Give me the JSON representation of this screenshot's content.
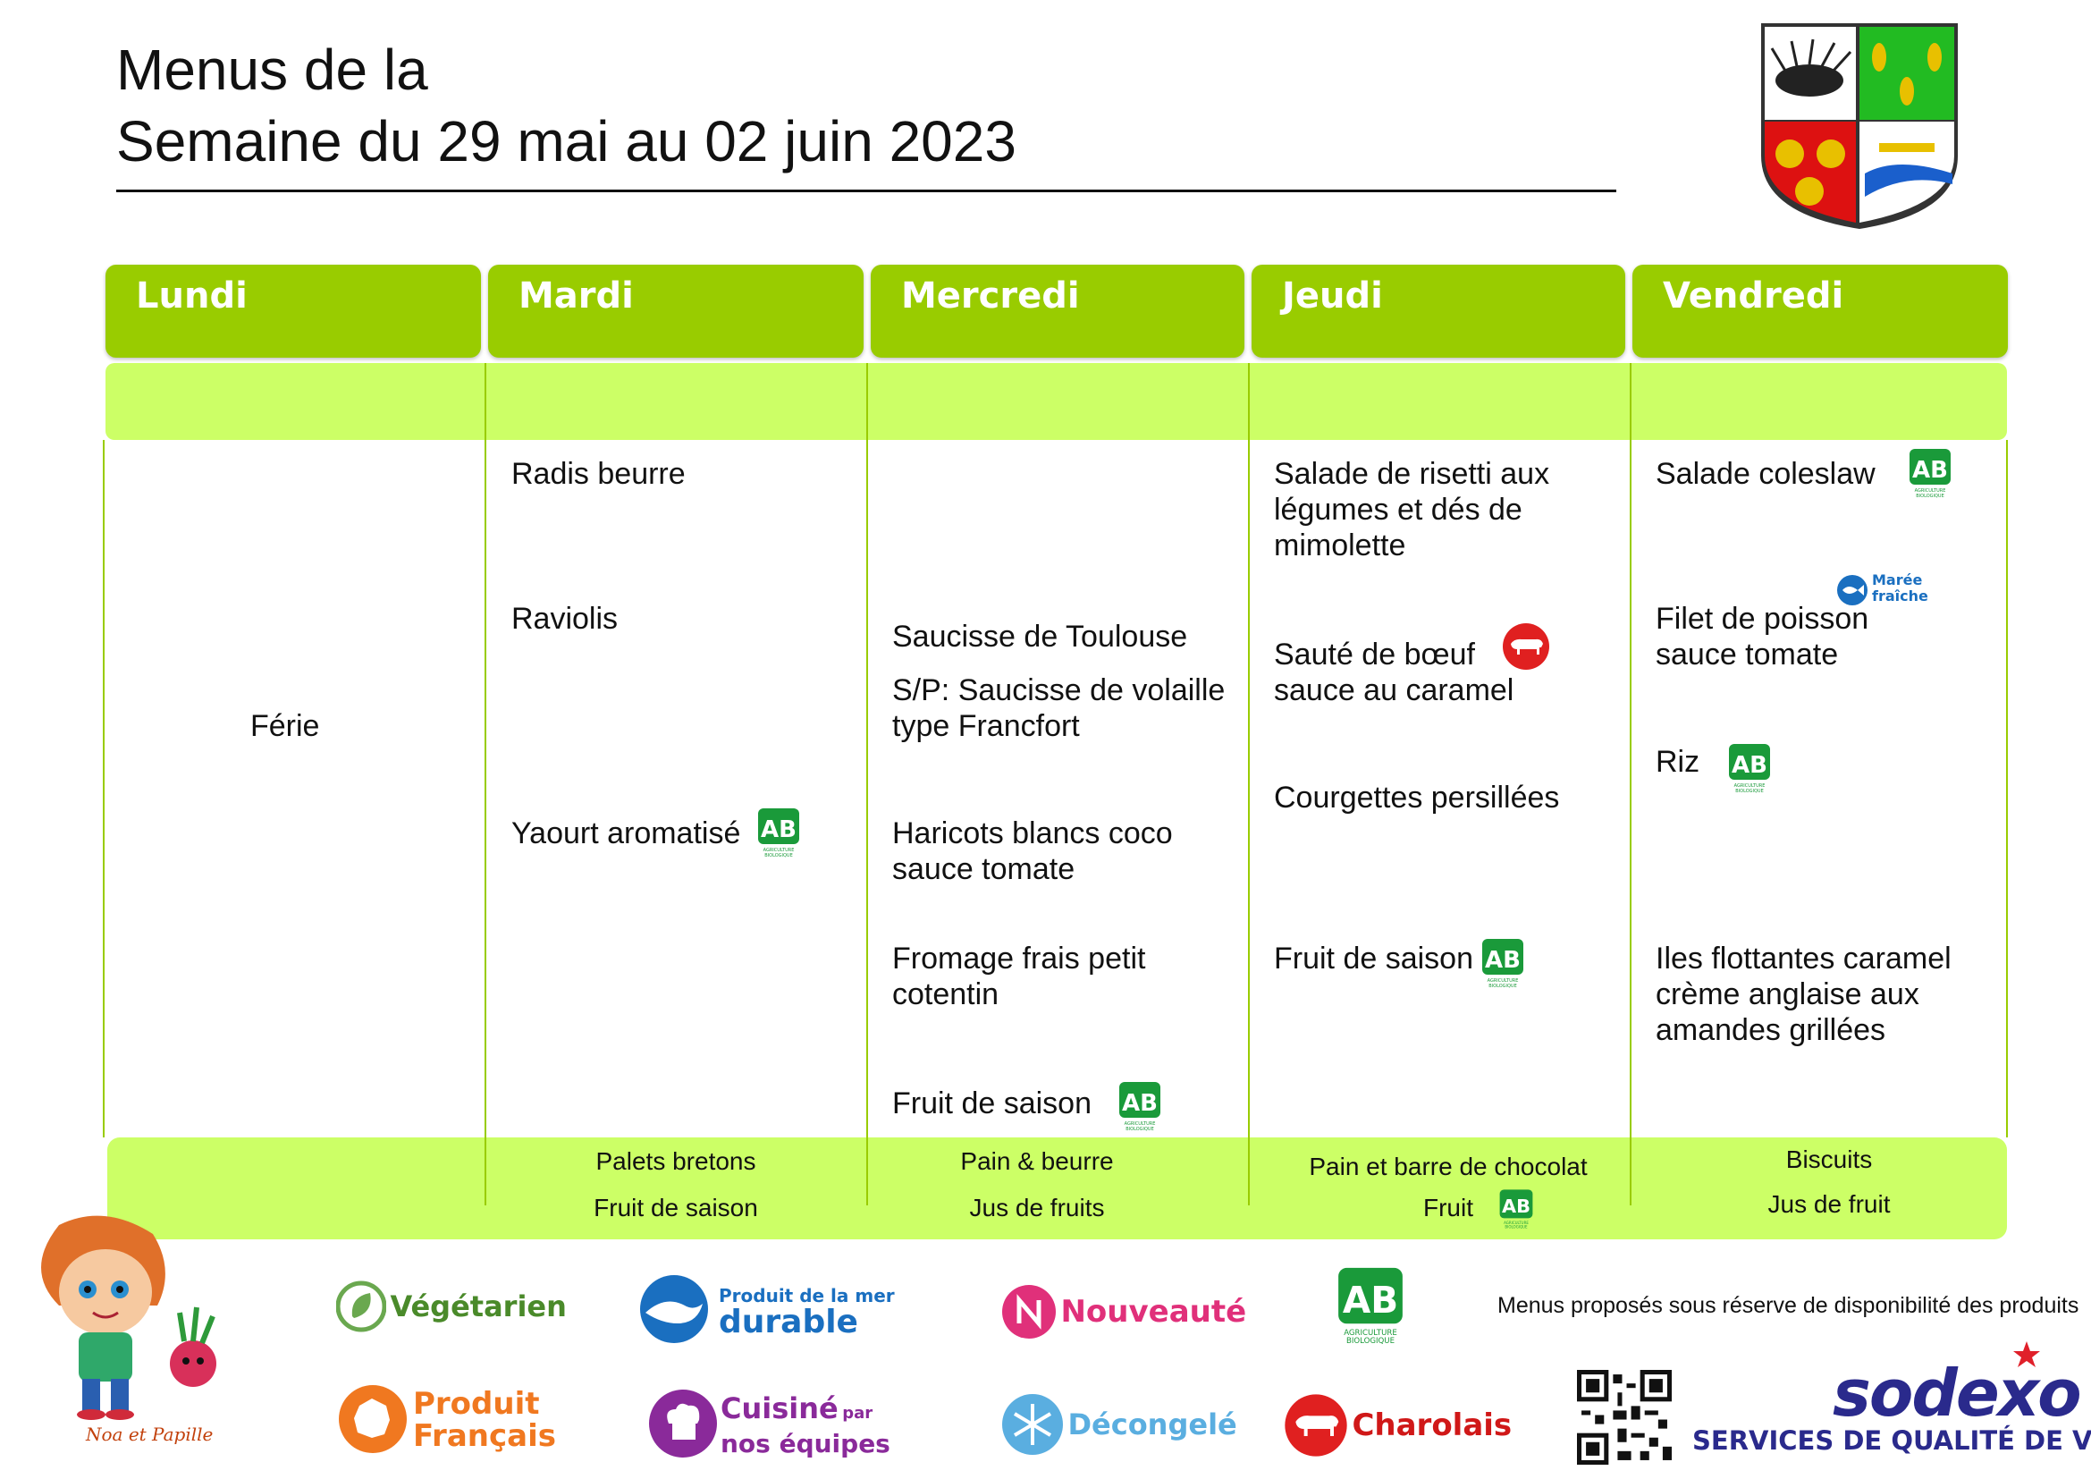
{
  "header": {
    "title_line1": "Menus de la",
    "title_line2": "Semaine du 29 mai au 02 juin 2023"
  },
  "days": [
    "Lundi",
    "Mardi",
    "Mercredi",
    "Jeudi",
    "Vendredi"
  ],
  "colors": {
    "day_header": "#99cc00",
    "band": "#ccff66",
    "divider": "#99cc00",
    "bio_green": "#1a9a3a"
  },
  "lundi": {
    "note": "Férie"
  },
  "mardi": {
    "starter": "Radis beurre",
    "main": "Raviolis",
    "dairy": "Yaourt aromatisé",
    "dairy_badge": "ab-bio-icon"
  },
  "mercredi": {
    "main": "Saucisse de Toulouse",
    "main_alt": "S/P: Saucisse de volaille type Francfort",
    "side": "Haricots blancs coco sauce tomate",
    "cheese": "Fromage frais petit cotentin",
    "dessert": "Fruit de saison",
    "dessert_badge": "ab-bio-icon"
  },
  "jeudi": {
    "starter": "Salade de risetti aux légumes et dés de mimolette",
    "main": "Sauté de bœuf sauce au caramel",
    "main_badge": "charolais-icon",
    "side": "Courgettes persillées",
    "dessert": "Fruit de saison",
    "dessert_badge": "ab-bio-icon"
  },
  "vendredi": {
    "starter": "Salade coleslaw",
    "starter_badge": "ab-bio-icon",
    "main_badge_line1": "Marée",
    "main_badge_line2": "fraîche",
    "main": "Filet de poisson sauce tomate",
    "side": "Riz",
    "side_badge": "ab-bio-icon",
    "dessert": "Iles flottantes caramel crème anglaise aux amandes grillées"
  },
  "gouter": {
    "mardi": [
      "Palets bretons",
      "Fruit de saison"
    ],
    "mercredi": [
      "Pain & beurre",
      "Jus de fruits"
    ],
    "jeudi": [
      "Pain et barre de chocolat",
      "Fruit"
    ],
    "vendredi": [
      "Biscuits",
      "Jus de fruit"
    ]
  },
  "ab_logo": {
    "letters": "AB",
    "caption1": "AGRICULTURE",
    "caption2": "BIOLOGIQUE"
  },
  "legend": {
    "vegetarien": "Végétarien",
    "mer_line1": "Produit de la mer",
    "mer_line2": "durable",
    "nouveaute": "Nouveauté",
    "produit_line1": "Produit",
    "produit_line2": "Français",
    "cuisine_line1": "Cuisiné",
    "cuisine_par": "par",
    "cuisine_line2": "nos équipes",
    "decongele": "Décongelé",
    "charolais": "Charolais",
    "mascot": "Noa et Papille"
  },
  "footer": {
    "note": "Menus proposés sous réserve de disponibilité des produits",
    "brand": "sodexo",
    "tagline": "SERVICES DE QUALITÉ DE VIE"
  }
}
